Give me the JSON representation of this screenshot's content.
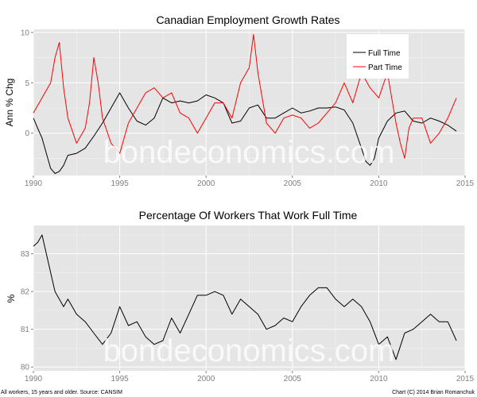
{
  "watermark": "bondeconomics.com",
  "caption_left": "All workers, 15 years and older. Source: CANSIM",
  "caption_right": "Chart (C) 2014 Brian Romanchuk",
  "chart_data": [
    {
      "type": "line",
      "title": "Canadian Employment Growth Rates",
      "xlabel": "",
      "ylabel": "Ann % Chg",
      "xlim": [
        1990,
        2015
      ],
      "ylim": [
        -4.2,
        10.3
      ],
      "x_ticks": [
        "1990",
        "1995",
        "2000",
        "2005",
        "2010",
        "2015"
      ],
      "y_ticks": [
        "0",
        "5",
        "10"
      ],
      "grid": true,
      "legend_position": "top-right",
      "series": [
        {
          "name": "Full Time",
          "color": "#000000",
          "x": [
            1990.0,
            1990.25,
            1990.5,
            1990.75,
            1991.0,
            1991.25,
            1991.5,
            1991.75,
            1992.0,
            1992.5,
            1993.0,
            1993.5,
            1994.0,
            1994.5,
            1995.0,
            1995.5,
            1996.0,
            1996.5,
            1997.0,
            1997.5,
            1998.0,
            1998.5,
            1999.0,
            1999.5,
            2000.0,
            2000.5,
            2001.0,
            2001.5,
            2002.0,
            2002.5,
            2003.0,
            2003.5,
            2004.0,
            2004.5,
            2005.0,
            2005.5,
            2006.0,
            2006.5,
            2007.0,
            2007.5,
            2008.0,
            2008.5,
            2009.0,
            2009.25,
            2009.5,
            2009.75,
            2010.0,
            2010.5,
            2011.0,
            2011.5,
            2012.0,
            2012.5,
            2013.0,
            2013.5,
            2014.0,
            2014.5
          ],
          "values": [
            1.5,
            0.5,
            -0.5,
            -2.0,
            -3.5,
            -4.0,
            -3.8,
            -3.2,
            -2.2,
            -2.0,
            -1.5,
            -0.3,
            1.0,
            2.5,
            4.0,
            2.5,
            1.2,
            0.8,
            1.5,
            3.5,
            3.0,
            3.2,
            3.0,
            3.2,
            3.8,
            3.5,
            3.0,
            1.0,
            1.2,
            2.5,
            2.8,
            1.5,
            1.5,
            2.0,
            2.5,
            2.0,
            2.2,
            2.5,
            2.5,
            2.6,
            2.3,
            1.0,
            -1.5,
            -2.8,
            -3.2,
            -2.5,
            -0.5,
            1.2,
            2.0,
            2.2,
            1.2,
            1.0,
            1.5,
            1.2,
            0.8,
            0.2
          ]
        },
        {
          "name": "Part Time",
          "color": "#ff0000",
          "x": [
            1990.0,
            1990.5,
            1991.0,
            1991.25,
            1991.5,
            1991.75,
            1992.0,
            1992.5,
            1993.0,
            1993.25,
            1993.5,
            1993.75,
            1994.0,
            1994.5,
            1995.0,
            1995.5,
            1996.0,
            1996.5,
            1997.0,
            1997.5,
            1998.0,
            1998.5,
            1999.0,
            1999.5,
            2000.0,
            2000.5,
            2001.0,
            2001.5,
            2002.0,
            2002.5,
            2002.75,
            2003.0,
            2003.5,
            2004.0,
            2004.5,
            2005.0,
            2005.5,
            2006.0,
            2006.5,
            2007.0,
            2007.5,
            2008.0,
            2008.5,
            2009.0,
            2009.5,
            2010.0,
            2010.5,
            2011.0,
            2011.25,
            2011.5,
            2011.75,
            2012.0,
            2012.5,
            2013.0,
            2013.5,
            2014.0,
            2014.25,
            2014.5
          ],
          "values": [
            2.0,
            3.5,
            5.0,
            7.5,
            9.0,
            4.5,
            1.5,
            -1.0,
            0.5,
            3.0,
            7.5,
            5.0,
            1.5,
            -1.0,
            -2.0,
            1.0,
            2.5,
            4.0,
            4.5,
            3.5,
            4.0,
            2.0,
            1.5,
            0.0,
            1.5,
            3.0,
            3.0,
            1.5,
            5.0,
            6.5,
            9.8,
            6.0,
            1.0,
            0.0,
            1.5,
            1.8,
            1.5,
            0.5,
            1.0,
            2.0,
            3.0,
            5.0,
            3.0,
            6.0,
            4.5,
            3.5,
            6.0,
            1.0,
            -1.0,
            -2.5,
            0.5,
            1.5,
            1.5,
            -1.0,
            0.0,
            1.5,
            2.5,
            3.5
          ]
        }
      ]
    },
    {
      "type": "line",
      "title": "Percentage Of Workers That Work Full Time",
      "xlabel": "",
      "ylabel": "%",
      "xlim": [
        1990,
        2015
      ],
      "ylim": [
        79.9,
        83.75
      ],
      "x_ticks": [
        "1990",
        "1995",
        "2000",
        "2005",
        "2010",
        "2015"
      ],
      "y_ticks": [
        "80",
        "81",
        "82",
        "83"
      ],
      "grid": true,
      "series": [
        {
          "color": "#000000",
          "x": [
            1990.0,
            1990.25,
            1990.5,
            1990.75,
            1991.0,
            1991.25,
            1991.5,
            1991.75,
            1992.0,
            1992.5,
            1993.0,
            1993.5,
            1994.0,
            1994.5,
            1995.0,
            1995.5,
            1996.0,
            1996.5,
            1997.0,
            1997.5,
            1998.0,
            1998.5,
            1999.0,
            1999.5,
            2000.0,
            2000.5,
            2001.0,
            2001.5,
            2002.0,
            2002.5,
            2003.0,
            2003.5,
            2004.0,
            2004.5,
            2005.0,
            2005.5,
            2006.0,
            2006.5,
            2007.0,
            2007.5,
            2008.0,
            2008.5,
            2009.0,
            2009.5,
            2010.0,
            2010.5,
            2011.0,
            2011.5,
            2012.0,
            2012.5,
            2013.0,
            2013.5,
            2014.0,
            2014.5
          ],
          "values": [
            83.2,
            83.3,
            83.5,
            83.0,
            82.5,
            82.0,
            81.8,
            81.6,
            81.8,
            81.4,
            81.2,
            80.9,
            80.6,
            80.9,
            81.6,
            81.1,
            81.2,
            80.8,
            80.6,
            80.7,
            81.3,
            80.9,
            81.4,
            81.9,
            81.9,
            82.0,
            81.9,
            81.4,
            81.8,
            81.6,
            81.4,
            81.0,
            81.1,
            81.3,
            81.2,
            81.6,
            81.9,
            82.1,
            82.1,
            81.8,
            81.6,
            81.8,
            81.6,
            81.2,
            80.6,
            80.8,
            80.2,
            80.9,
            81.0,
            81.2,
            81.4,
            81.2,
            81.2,
            80.7
          ]
        }
      ]
    }
  ]
}
